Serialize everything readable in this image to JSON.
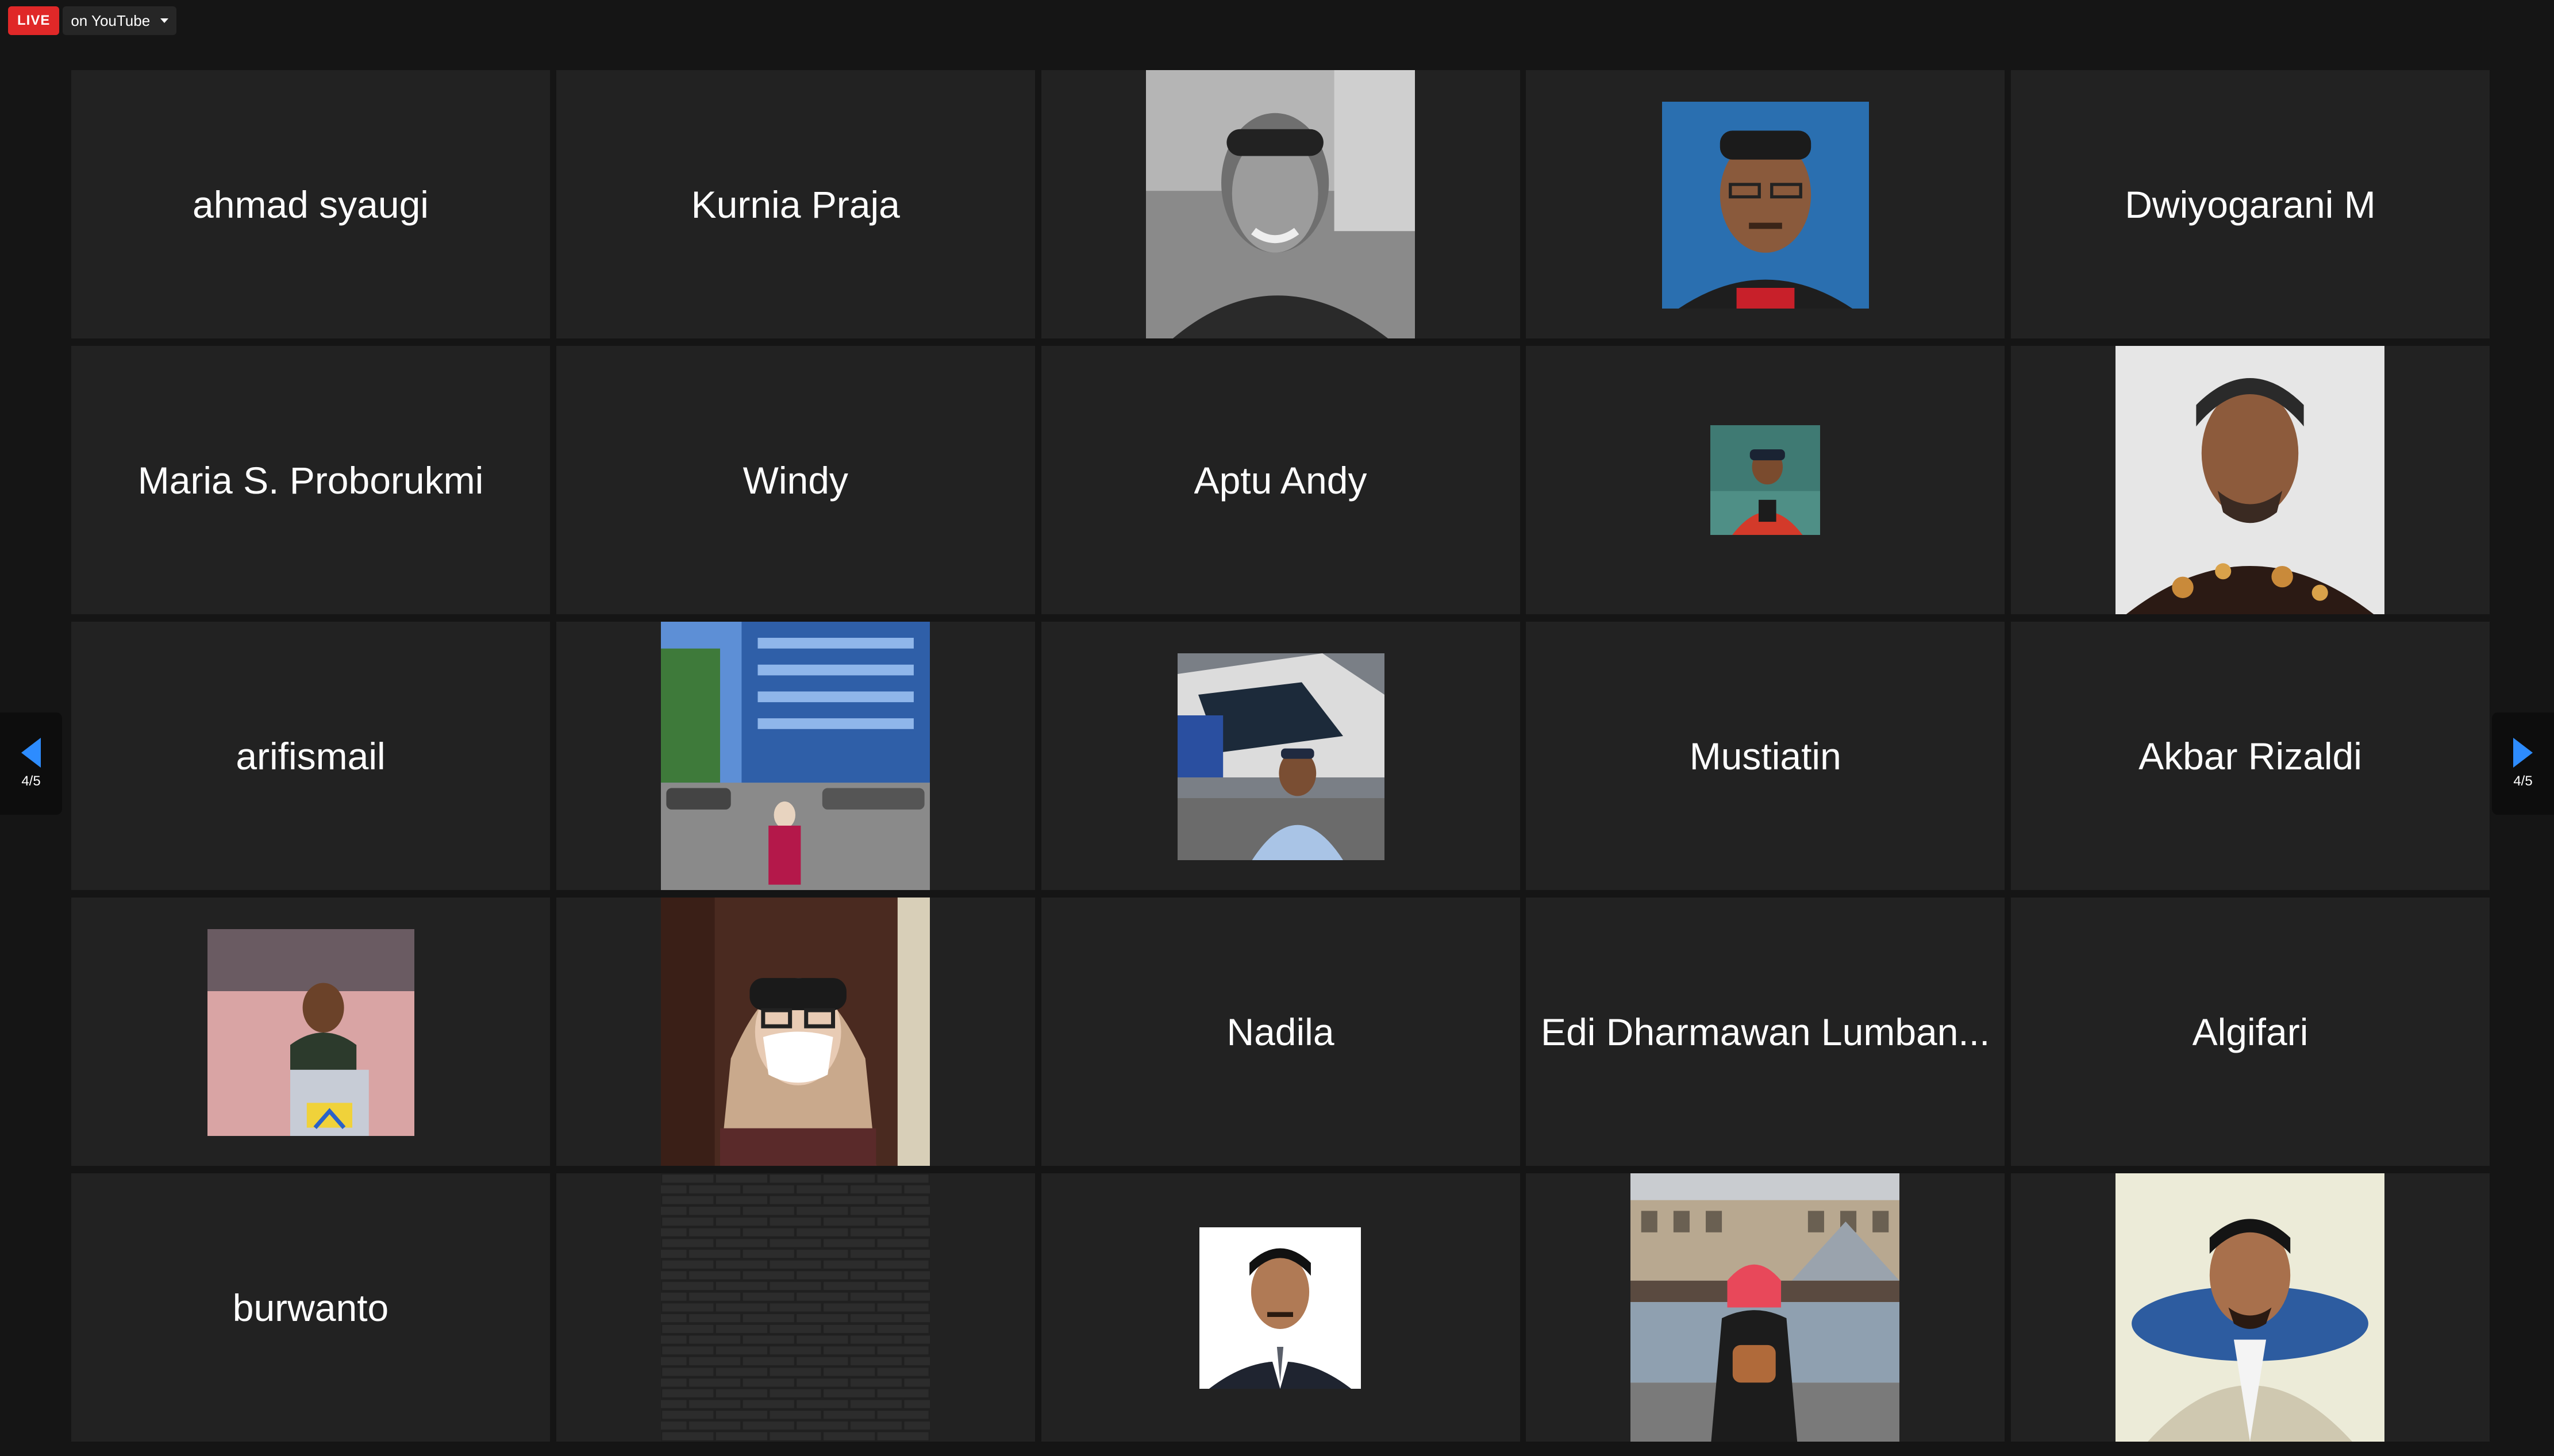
{
  "live": {
    "badge_label": "LIVE",
    "target_label": "on YouTube",
    "menu_icon": "chevron-down-icon"
  },
  "pager": {
    "left_label": "4/5",
    "right_label": "4/5",
    "left_icon": "arrow-left-icon",
    "right_icon": "arrow-right-icon"
  },
  "accent_color": "#2d8cff",
  "live_color": "#e02828",
  "participants": [
    {
      "name": "ahmad syaugi"
    },
    {
      "name": "Kurnia Praja"
    },
    {
      "avatar": "photo-smiling-man-bw"
    },
    {
      "avatar": "photo-man-glasses-blue-bg"
    },
    {
      "name": "Dwiyogarani M"
    },
    {
      "name": "Maria S. Proborukmi"
    },
    {
      "name": "Windy"
    },
    {
      "name": "Aptu Andy"
    },
    {
      "avatar": "photo-man-boat-cap"
    },
    {
      "avatar": "photo-man-batik"
    },
    {
      "name": "arifismail"
    },
    {
      "avatar": "photo-woman-building"
    },
    {
      "avatar": "photo-man-police-helicopter"
    },
    {
      "name": "Mustiatin"
    },
    {
      "name": "Akbar Rizaldi"
    },
    {
      "avatar": "photo-man-station"
    },
    {
      "avatar": "photo-woman-mask"
    },
    {
      "name": "Nadila"
    },
    {
      "name": "Edi Dharmawan Lumban..."
    },
    {
      "name": "Algifari"
    },
    {
      "name": "burwanto"
    },
    {
      "avatar": "photo-brick-wall"
    },
    {
      "avatar": "photo-man-suit-portrait"
    },
    {
      "avatar": "photo-woman-louvre"
    },
    {
      "avatar": "photo-man-office-chair"
    }
  ]
}
